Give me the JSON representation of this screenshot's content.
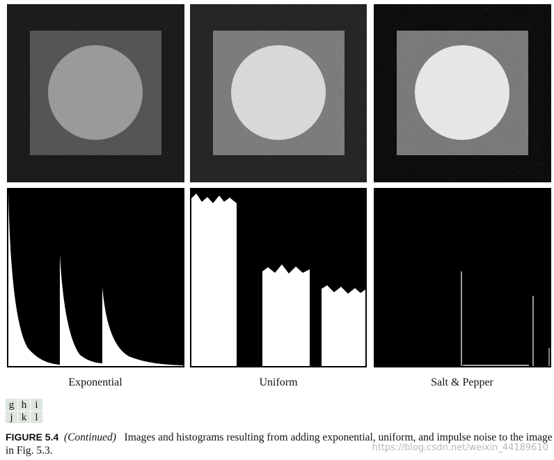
{
  "panels": {
    "labels": [
      "Exponential",
      "Uniform",
      "Salt & Pepper"
    ],
    "letters": [
      [
        "g",
        "h",
        "i"
      ],
      [
        "j",
        "k",
        "l"
      ]
    ]
  },
  "caption": {
    "figure": "FIGURE 5.4",
    "continued": "(Continued)",
    "text": "Images and histograms resulting from adding exponential, uniform, and impulse noise to the image in Fig. 5.3."
  },
  "watermark": "https://blog.csdn.net/weixin_44189610"
}
